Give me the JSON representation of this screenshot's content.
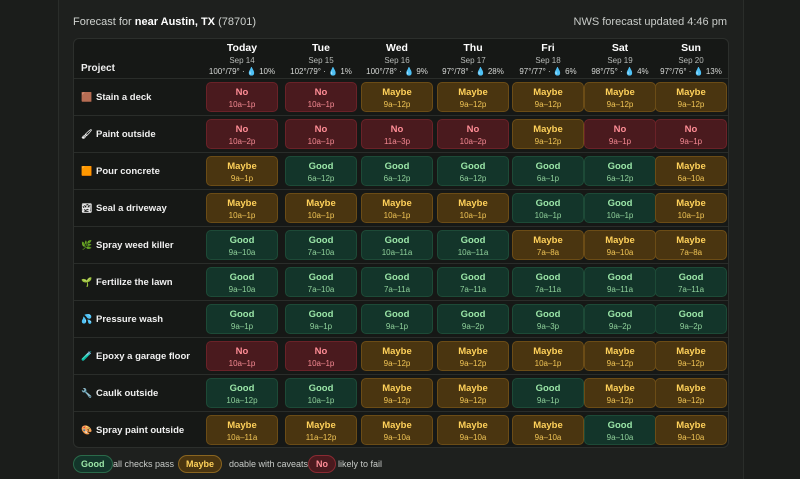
{
  "header": {
    "forecast_prefix": "Forecast for ",
    "location": "near Austin, TX",
    "zip": " (78701)",
    "updated": "NWS forecast updated 4:46 pm"
  },
  "table": {
    "project_col": "Project",
    "days": [
      {
        "name": "Today",
        "date": "Sep 14",
        "weather": "100°/79° · ",
        "precip": "10%"
      },
      {
        "name": "Tue",
        "date": "Sep 15",
        "weather": "102°/79° · ",
        "precip": "1%"
      },
      {
        "name": "Wed",
        "date": "Sep 16",
        "weather": "100°/78° · ",
        "precip": "9%"
      },
      {
        "name": "Thu",
        "date": "Sep 17",
        "weather": "97°/78° · ",
        "precip": "28%"
      },
      {
        "name": "Fri",
        "date": "Sep 18",
        "weather": "97°/77° · ",
        "precip": "6%"
      },
      {
        "name": "Sat",
        "date": "Sep 19",
        "weather": "98°/75° · ",
        "precip": "4%"
      },
      {
        "name": "Sun",
        "date": "Sep 20",
        "weather": "97°/76° · ",
        "precip": "13%"
      }
    ],
    "projects": [
      {
        "name": "Stain a deck",
        "icon": "🟫",
        "cells": [
          [
            "No",
            "10a–1p",
            "no"
          ],
          [
            "No",
            "10a–1p",
            "no"
          ],
          [
            "Maybe",
            "9a–12p",
            "maybe"
          ],
          [
            "Maybe",
            "9a–12p",
            "maybe"
          ],
          [
            "Maybe",
            "9a–12p",
            "maybe"
          ],
          [
            "Maybe",
            "9a–12p",
            "maybe"
          ],
          [
            "Maybe",
            "9a–12p",
            "maybe"
          ]
        ]
      },
      {
        "name": "Paint outside",
        "icon": "🖌",
        "cells": [
          [
            "No",
            "10a–2p",
            "no"
          ],
          [
            "No",
            "10a–1p",
            "no"
          ],
          [
            "No",
            "11a–3p",
            "no"
          ],
          [
            "No",
            "10a–2p",
            "no"
          ],
          [
            "Maybe",
            "9a–12p",
            "maybe"
          ],
          [
            "No",
            "9a–1p",
            "no"
          ],
          [
            "No",
            "9a–1p",
            "no"
          ]
        ]
      },
      {
        "name": "Pour concrete",
        "icon": "🟧",
        "cells": [
          [
            "Maybe",
            "9a–1p",
            "maybe"
          ],
          [
            "Good",
            "6a–12p",
            "good"
          ],
          [
            "Good",
            "6a–12p",
            "good"
          ],
          [
            "Good",
            "6a–12p",
            "good"
          ],
          [
            "Good",
            "6a–1p",
            "good"
          ],
          [
            "Good",
            "6a–12p",
            "good"
          ],
          [
            "Maybe",
            "6a–10a",
            "maybe"
          ]
        ]
      },
      {
        "name": "Seal a driveway",
        "icon": "🏞",
        "cells": [
          [
            "Maybe",
            "10a–1p",
            "maybe"
          ],
          [
            "Maybe",
            "10a–1p",
            "maybe"
          ],
          [
            "Maybe",
            "10a–1p",
            "maybe"
          ],
          [
            "Maybe",
            "10a–1p",
            "maybe"
          ],
          [
            "Good",
            "10a–1p",
            "good"
          ],
          [
            "Good",
            "10a–1p",
            "good"
          ],
          [
            "Maybe",
            "10a–1p",
            "maybe"
          ]
        ]
      },
      {
        "name": "Spray weed killer",
        "icon": "🌿",
        "cells": [
          [
            "Good",
            "9a–10a",
            "good"
          ],
          [
            "Good",
            "7a–10a",
            "good"
          ],
          [
            "Good",
            "10a–11a",
            "good"
          ],
          [
            "Good",
            "10a–11a",
            "good"
          ],
          [
            "Maybe",
            "7a–8a",
            "maybe"
          ],
          [
            "Maybe",
            "9a–10a",
            "maybe"
          ],
          [
            "Maybe",
            "7a–8a",
            "maybe"
          ]
        ]
      },
      {
        "name": "Fertilize the lawn",
        "icon": "🌱",
        "cells": [
          [
            "Good",
            "9a–10a",
            "good"
          ],
          [
            "Good",
            "7a–10a",
            "good"
          ],
          [
            "Good",
            "7a–11a",
            "good"
          ],
          [
            "Good",
            "7a–11a",
            "good"
          ],
          [
            "Good",
            "7a–11a",
            "good"
          ],
          [
            "Good",
            "9a–11a",
            "good"
          ],
          [
            "Good",
            "7a–11a",
            "good"
          ]
        ]
      },
      {
        "name": "Pressure wash",
        "icon": "💦",
        "cells": [
          [
            "Good",
            "9a–1p",
            "good"
          ],
          [
            "Good",
            "9a–1p",
            "good"
          ],
          [
            "Good",
            "9a–1p",
            "good"
          ],
          [
            "Good",
            "9a–2p",
            "good"
          ],
          [
            "Good",
            "9a–3p",
            "good"
          ],
          [
            "Good",
            "9a–2p",
            "good"
          ],
          [
            "Good",
            "9a–2p",
            "good"
          ]
        ]
      },
      {
        "name": "Epoxy a garage floor",
        "icon": "🧪",
        "cells": [
          [
            "No",
            "10a–1p",
            "no"
          ],
          [
            "No",
            "10a–1p",
            "no"
          ],
          [
            "Maybe",
            "9a–12p",
            "maybe"
          ],
          [
            "Maybe",
            "9a–12p",
            "maybe"
          ],
          [
            "Maybe",
            "10a–1p",
            "maybe"
          ],
          [
            "Maybe",
            "9a–12p",
            "maybe"
          ],
          [
            "Maybe",
            "9a–12p",
            "maybe"
          ]
        ]
      },
      {
        "name": "Caulk outside",
        "icon": "🔧",
        "cells": [
          [
            "Good",
            "10a–12p",
            "good"
          ],
          [
            "Good",
            "10a–1p",
            "good"
          ],
          [
            "Maybe",
            "9a–12p",
            "maybe"
          ],
          [
            "Maybe",
            "9a–12p",
            "maybe"
          ],
          [
            "Good",
            "9a–1p",
            "good"
          ],
          [
            "Maybe",
            "9a–12p",
            "maybe"
          ],
          [
            "Maybe",
            "9a–12p",
            "maybe"
          ]
        ]
      },
      {
        "name": "Spray paint outside",
        "icon": "🎨",
        "cells": [
          [
            "Maybe",
            "10a–11a",
            "maybe"
          ],
          [
            "Maybe",
            "11a–12p",
            "maybe"
          ],
          [
            "Maybe",
            "9a–10a",
            "maybe"
          ],
          [
            "Maybe",
            "9a–10a",
            "maybe"
          ],
          [
            "Maybe",
            "9a–10a",
            "maybe"
          ],
          [
            "Good",
            "9a–10a",
            "good"
          ],
          [
            "Maybe",
            "9a–10a",
            "maybe"
          ]
        ]
      }
    ]
  },
  "legend": {
    "good_label": "Good",
    "good_desc": "all checks pass",
    "maybe_label": "Maybe",
    "maybe_desc": "doable with caveats",
    "no_label": "No",
    "no_desc": "likely to fail"
  },
  "colors": {
    "background": "#1b1d1b",
    "good": "#13352a",
    "maybe": "#4a3510",
    "no": "#4a1a1e"
  }
}
